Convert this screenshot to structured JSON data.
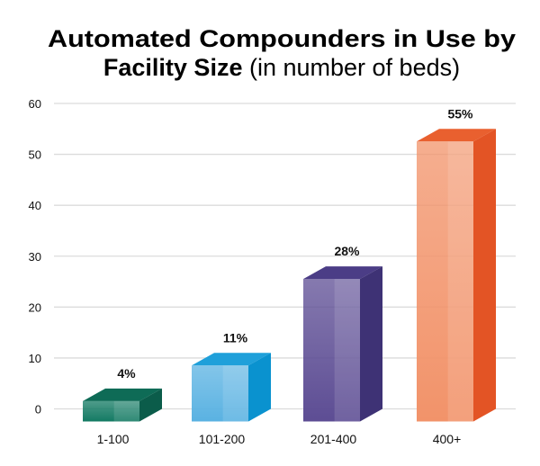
{
  "chart_data": {
    "type": "bar",
    "title": "Automated Compounders in Use by",
    "title_line2_bold": "Facility Size",
    "title_line2_normal": "(in number of beds)",
    "categories": [
      "1-100",
      "101-200",
      "201-400",
      "400+"
    ],
    "values": [
      4,
      11,
      28,
      55
    ],
    "data_labels": [
      "4%",
      "11%",
      "28%",
      "55%"
    ],
    "ylim": [
      0,
      60
    ],
    "yticks": [
      "0",
      "10",
      "20",
      "30",
      "40",
      "50",
      "60"
    ],
    "grid": true,
    "style": "3d",
    "colors": [
      {
        "front": "#137a63",
        "side": "#0b5c4a",
        "top": "#0e6b56"
      },
      {
        "front": "#5ab2e2",
        "side": "#0a92cf",
        "top": "#1fa0da"
      },
      {
        "front": "#5d4d94",
        "side": "#3e3275",
        "top": "#4b3d86"
      },
      {
        "front": "#f2936a",
        "side": "#e35425",
        "top": "#e9602f"
      }
    ]
  }
}
